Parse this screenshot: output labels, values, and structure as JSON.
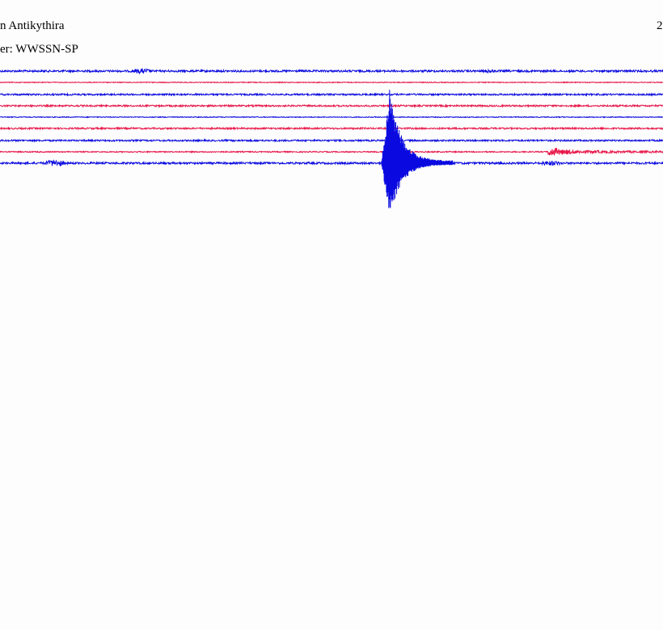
{
  "header": {
    "station": "n Antikythira",
    "filter": "er: WWSSN-SP",
    "corner": "2"
  }
}
